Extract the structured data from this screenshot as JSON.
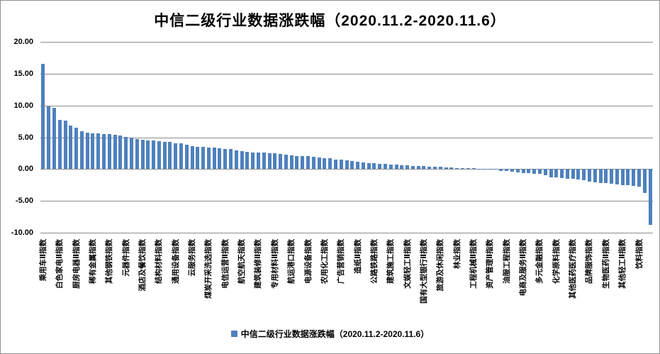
{
  "chart_data": {
    "type": "bar",
    "title": "中信二级行业数据涨跌幅（2020.11.2-2020.11.6）",
    "legend_label": "中信二级行业数据涨跌幅（2020.11.2-2020.11.6）",
    "legend_position": "bottom-center",
    "bar_color": "#4F81BD",
    "grid": true,
    "gridline_color": "#8C8C8C",
    "ylim": [
      -10,
      20
    ],
    "ytick_step": 5,
    "yticks": [
      "20.00",
      "15.00",
      "10.00",
      "5.00",
      "0.00",
      "-5.00",
      "-10.00"
    ],
    "label_every": 3,
    "categories_note": "x labels are shown for every 3rd bar, rotated 90°, values sorted descending",
    "categories": [
      "乘用车Ⅱ指数",
      "白色家电Ⅱ指数",
      "厨房电器Ⅱ指数",
      "稀有金属指数",
      "其他钢铁指数",
      "元器件指数",
      "酒店及餐饮指数",
      "结构材料指数",
      "通用设备指数",
      "云服务指数",
      "煤炭开采洗选指数",
      "电信运营Ⅱ指数",
      "航空航天指数",
      "建筑装修Ⅱ指数",
      "专用材料Ⅱ指数",
      "航运港口指数",
      "电源设备指数",
      "农用化工指数",
      "广告营销指数",
      "造纸Ⅱ指数",
      "公路铁路指数",
      "建筑施工指数",
      "文娱轻工Ⅱ指数",
      "国有大型银行Ⅱ指数",
      "旅游及休闲指数",
      "林业指数",
      "工程机械Ⅱ指数",
      "资产管理Ⅱ指数",
      "油服工程指数",
      "电商及服务Ⅱ指数",
      "多元金融指数",
      "化学原料指数",
      "其他医药医疗指数",
      "品牌服饰指数",
      "生物医药Ⅱ指数",
      "其他轻工Ⅱ指数",
      "饮料指数"
    ],
    "values": [
      16.5,
      9.9,
      9.6,
      7.7,
      7.65,
      6.8,
      6.5,
      6.0,
      5.7,
      5.65,
      5.6,
      5.55,
      5.45,
      5.35,
      5.25,
      5.1,
      4.9,
      4.75,
      4.65,
      4.55,
      4.45,
      4.4,
      4.3,
      4.25,
      4.1,
      4.0,
      3.8,
      3.65,
      3.5,
      3.45,
      3.4,
      3.35,
      3.3,
      3.2,
      3.15,
      2.95,
      2.8,
      2.7,
      2.65,
      2.6,
      2.55,
      2.5,
      2.45,
      2.35,
      2.25,
      2.15,
      2.1,
      2.05,
      2.0,
      1.95,
      1.85,
      1.75,
      1.7,
      1.5,
      1.45,
      1.4,
      1.25,
      1.15,
      1.05,
      0.95,
      0.9,
      0.85,
      0.8,
      0.7,
      0.68,
      0.62,
      0.58,
      0.52,
      0.5,
      0.48,
      0.42,
      0.38,
      0.32,
      0.3,
      0.26,
      0.2,
      0.18,
      0.15,
      0.1,
      0.06,
      0.04,
      0.02,
      -0.05,
      -0.25,
      -0.35,
      -0.45,
      -0.5,
      -0.6,
      -0.65,
      -0.75,
      -0.8,
      -1.0,
      -1.3,
      -1.35,
      -1.45,
      -1.5,
      -1.55,
      -1.6,
      -1.75,
      -1.95,
      -2.1,
      -2.15,
      -2.2,
      -2.25,
      -2.4,
      -2.5,
      -2.55,
      -2.6,
      -2.7,
      -3.7,
      -8.8
    ]
  }
}
